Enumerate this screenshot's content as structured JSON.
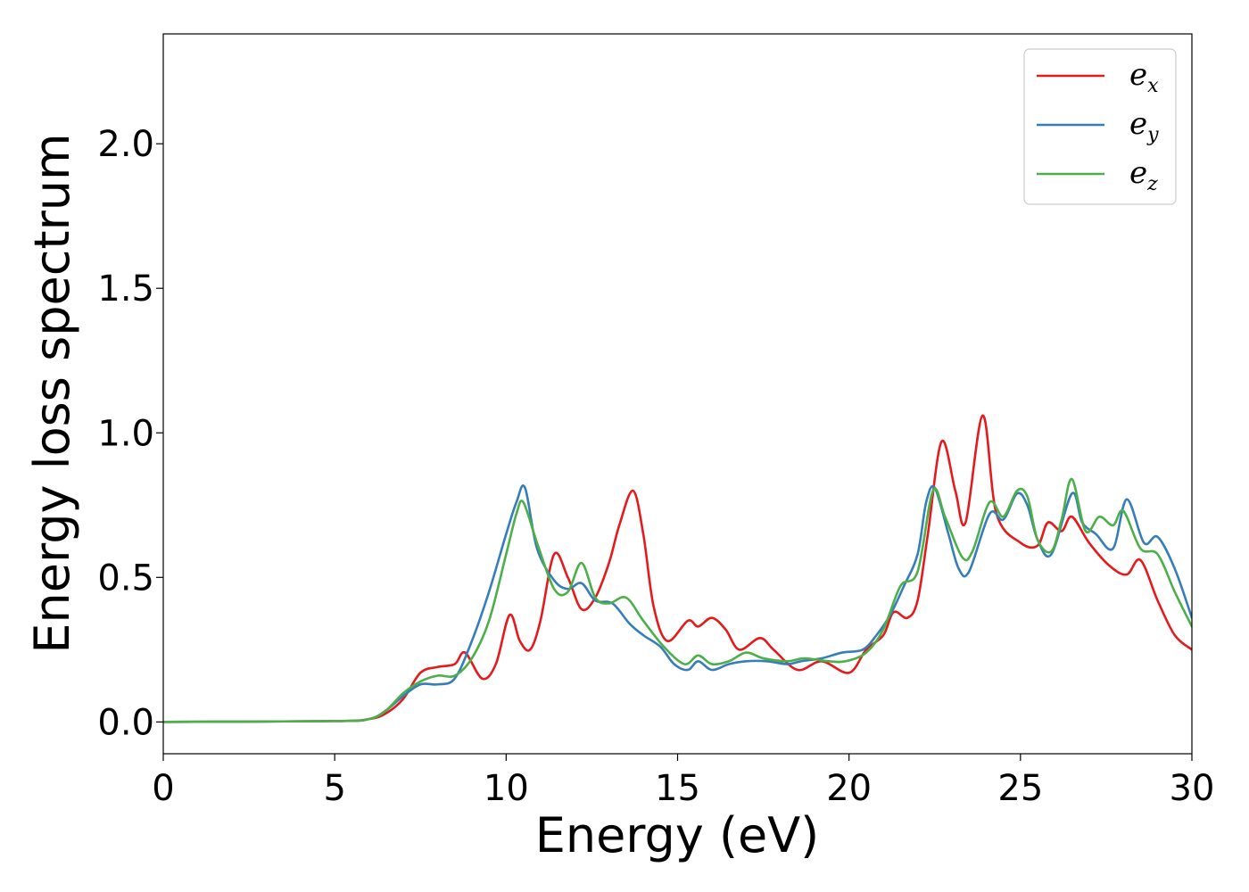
{
  "chart_data": {
    "type": "line",
    "title": "",
    "xlabel": "Energy (eV)",
    "ylabel": "Energy loss spectrum",
    "xlim": [
      0,
      30
    ],
    "ylim": [
      -0.11,
      2.38
    ],
    "xticks": [
      0,
      5,
      10,
      15,
      20,
      25,
      30
    ],
    "xtick_labels": [
      "0",
      "5",
      "10",
      "15",
      "20",
      "25",
      "30"
    ],
    "yticks": [
      0.0,
      0.5,
      1.0,
      1.5,
      2.0
    ],
    "ytick_labels": [
      "0.0",
      "0.5",
      "1.0",
      "1.5",
      "2.0"
    ],
    "grid": false,
    "legend_position": "top-right",
    "series": [
      {
        "name": "e_x",
        "legend_base": "e",
        "legend_sub": "x",
        "color": "#e41a1c",
        "points": [
          [
            0,
            0
          ],
          [
            5,
            0.003
          ],
          [
            6,
            0.01
          ],
          [
            6.5,
            0.03
          ],
          [
            7,
            0.08
          ],
          [
            7.5,
            0.17
          ],
          [
            8,
            0.19
          ],
          [
            8.5,
            0.2
          ],
          [
            8.8,
            0.24
          ],
          [
            9.3,
            0.15
          ],
          [
            9.7,
            0.2
          ],
          [
            10.1,
            0.37
          ],
          [
            10.4,
            0.28
          ],
          [
            10.7,
            0.25
          ],
          [
            11,
            0.35
          ],
          [
            11.4,
            0.58
          ],
          [
            11.8,
            0.5
          ],
          [
            12.2,
            0.39
          ],
          [
            12.6,
            0.43
          ],
          [
            13,
            0.55
          ],
          [
            13.3,
            0.68
          ],
          [
            13.7,
            0.8
          ],
          [
            14,
            0.65
          ],
          [
            14.3,
            0.4
          ],
          [
            14.7,
            0.28
          ],
          [
            15.3,
            0.35
          ],
          [
            15.6,
            0.33
          ],
          [
            16,
            0.36
          ],
          [
            16.4,
            0.32
          ],
          [
            16.8,
            0.25
          ],
          [
            17.4,
            0.29
          ],
          [
            17.8,
            0.25
          ],
          [
            18.5,
            0.18
          ],
          [
            19.2,
            0.21
          ],
          [
            20,
            0.17
          ],
          [
            20.5,
            0.25
          ],
          [
            21,
            0.3
          ],
          [
            21.3,
            0.38
          ],
          [
            21.7,
            0.36
          ],
          [
            22,
            0.42
          ],
          [
            22.3,
            0.65
          ],
          [
            22.7,
            0.97
          ],
          [
            23.1,
            0.8
          ],
          [
            23.4,
            0.69
          ],
          [
            23.9,
            1.06
          ],
          [
            24.3,
            0.72
          ],
          [
            25,
            0.62
          ],
          [
            25.5,
            0.61
          ],
          [
            25.8,
            0.69
          ],
          [
            26.2,
            0.66
          ],
          [
            26.5,
            0.71
          ],
          [
            27,
            0.62
          ],
          [
            27.6,
            0.54
          ],
          [
            28.1,
            0.51
          ],
          [
            28.5,
            0.56
          ],
          [
            29,
            0.42
          ],
          [
            29.5,
            0.3
          ],
          [
            30,
            0.25
          ]
        ]
      },
      {
        "name": "e_y",
        "legend_base": "e",
        "legend_sub": "y",
        "color": "#377eb8",
        "points": [
          [
            0,
            0
          ],
          [
            5,
            0.003
          ],
          [
            6,
            0.01
          ],
          [
            6.5,
            0.04
          ],
          [
            7,
            0.09
          ],
          [
            7.5,
            0.13
          ],
          [
            8,
            0.13
          ],
          [
            8.5,
            0.15
          ],
          [
            9,
            0.28
          ],
          [
            9.5,
            0.45
          ],
          [
            10,
            0.65
          ],
          [
            10.3,
            0.76
          ],
          [
            10.55,
            0.81
          ],
          [
            10.9,
            0.6
          ],
          [
            11.4,
            0.49
          ],
          [
            11.8,
            0.46
          ],
          [
            12.2,
            0.48
          ],
          [
            12.6,
            0.42
          ],
          [
            13.1,
            0.41
          ],
          [
            13.6,
            0.34
          ],
          [
            14,
            0.3
          ],
          [
            14.5,
            0.26
          ],
          [
            14.9,
            0.2
          ],
          [
            15.3,
            0.18
          ],
          [
            15.6,
            0.21
          ],
          [
            16,
            0.18
          ],
          [
            16.5,
            0.2
          ],
          [
            17,
            0.21
          ],
          [
            17.6,
            0.21
          ],
          [
            18.2,
            0.2
          ],
          [
            18.6,
            0.21
          ],
          [
            19.2,
            0.22
          ],
          [
            19.8,
            0.24
          ],
          [
            20.4,
            0.25
          ],
          [
            20.8,
            0.3
          ],
          [
            21.2,
            0.37
          ],
          [
            21.6,
            0.47
          ],
          [
            22,
            0.58
          ],
          [
            22.25,
            0.76
          ],
          [
            22.5,
            0.81
          ],
          [
            22.9,
            0.65
          ],
          [
            23.2,
            0.53
          ],
          [
            23.5,
            0.52
          ],
          [
            24.1,
            0.72
          ],
          [
            24.5,
            0.7
          ],
          [
            24.9,
            0.79
          ],
          [
            25.2,
            0.75
          ],
          [
            25.5,
            0.63
          ],
          [
            25.9,
            0.58
          ],
          [
            26.5,
            0.79
          ],
          [
            26.8,
            0.69
          ],
          [
            27.2,
            0.65
          ],
          [
            27.7,
            0.6
          ],
          [
            28.1,
            0.77
          ],
          [
            28.6,
            0.62
          ],
          [
            29,
            0.64
          ],
          [
            29.5,
            0.53
          ],
          [
            30,
            0.36
          ]
        ]
      },
      {
        "name": "e_z",
        "legend_base": "e",
        "legend_sub": "z",
        "color": "#4daf4a",
        "points": [
          [
            0,
            0
          ],
          [
            5,
            0.003
          ],
          [
            6,
            0.01
          ],
          [
            6.5,
            0.04
          ],
          [
            7,
            0.1
          ],
          [
            7.5,
            0.14
          ],
          [
            8,
            0.16
          ],
          [
            8.5,
            0.16
          ],
          [
            9,
            0.22
          ],
          [
            9.5,
            0.35
          ],
          [
            10,
            0.58
          ],
          [
            10.3,
            0.72
          ],
          [
            10.5,
            0.76
          ],
          [
            10.9,
            0.62
          ],
          [
            11.4,
            0.46
          ],
          [
            11.8,
            0.45
          ],
          [
            12.2,
            0.55
          ],
          [
            12.6,
            0.43
          ],
          [
            13,
            0.41
          ],
          [
            13.5,
            0.43
          ],
          [
            14,
            0.35
          ],
          [
            14.6,
            0.26
          ],
          [
            15.2,
            0.2
          ],
          [
            15.6,
            0.23
          ],
          [
            16,
            0.2
          ],
          [
            16.5,
            0.21
          ],
          [
            17,
            0.24
          ],
          [
            17.5,
            0.22
          ],
          [
            18.2,
            0.21
          ],
          [
            18.7,
            0.22
          ],
          [
            19.4,
            0.21
          ],
          [
            19.9,
            0.21
          ],
          [
            20.5,
            0.24
          ],
          [
            21,
            0.32
          ],
          [
            21.5,
            0.47
          ],
          [
            22,
            0.52
          ],
          [
            22.45,
            0.8
          ],
          [
            22.8,
            0.71
          ],
          [
            23.3,
            0.57
          ],
          [
            23.6,
            0.59
          ],
          [
            24.1,
            0.76
          ],
          [
            24.5,
            0.71
          ],
          [
            24.9,
            0.8
          ],
          [
            25.2,
            0.78
          ],
          [
            25.5,
            0.63
          ],
          [
            25.9,
            0.59
          ],
          [
            26.2,
            0.7
          ],
          [
            26.5,
            0.84
          ],
          [
            26.9,
            0.66
          ],
          [
            27.3,
            0.71
          ],
          [
            27.7,
            0.68
          ],
          [
            28,
            0.73
          ],
          [
            28.5,
            0.6
          ],
          [
            29,
            0.58
          ],
          [
            29.5,
            0.45
          ],
          [
            30,
            0.33
          ]
        ]
      }
    ]
  }
}
